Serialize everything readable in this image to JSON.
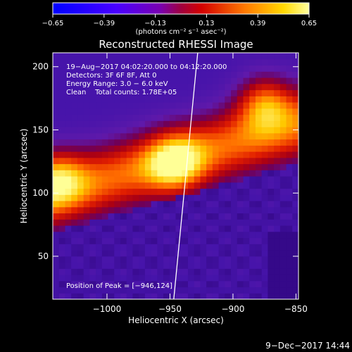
{
  "chart_data": {
    "type": "heatmap",
    "title": "Reconstructed RHESSI Image",
    "xlabel": "Heliocentric X (arcsec)",
    "ylabel": "Heliocentric Y (arcsec)",
    "xlim": [
      -1043,
      -848
    ],
    "ylim": [
      16,
      211
    ],
    "x_ticks": [
      -1000,
      -950,
      -900,
      -850
    ],
    "x_tick_labels": [
      "−1000",
      "−950",
      "−900",
      "−850"
    ],
    "y_ticks": [
      50,
      100,
      150,
      200
    ],
    "y_tick_labels": [
      "50",
      "100",
      "150",
      "200"
    ],
    "colorbar": {
      "range": [
        -0.65,
        0.65
      ],
      "ticks": [
        -0.65,
        -0.39,
        -0.13,
        0.13,
        0.39,
        0.65
      ],
      "tick_labels": [
        "−0.65",
        "−0.39",
        "−0.13",
        "0.13",
        "0.39",
        "0.65"
      ],
      "unit_label": "(photons cm⁻² s⁻¹ asec⁻²)"
    },
    "annotations": [
      "19−Aug−2017 04:02:20.000 to 04:12:20.000",
      "Detectors: 3F 6F 8F, Att 0",
      "Energy Range: 3.0 − 6.0 keV",
      "Clean    Total counts: 1.78E+05"
    ],
    "peak_label": "Position of Peak = [−946,124]",
    "sources": [
      {
        "x": -1040,
        "y": 112,
        "peak": 0.55
      },
      {
        "x": -946,
        "y": 124,
        "peak": 0.65
      },
      {
        "x": -875,
        "y": 172,
        "peak": 0.6
      }
    ],
    "limb_line": [
      [
        -947,
        16
      ],
      [
        -928,
        211
      ]
    ],
    "timestamp": "9−Dec−2017 14:44"
  },
  "colors": {
    "background": "#000000",
    "text": "#ffffff"
  }
}
